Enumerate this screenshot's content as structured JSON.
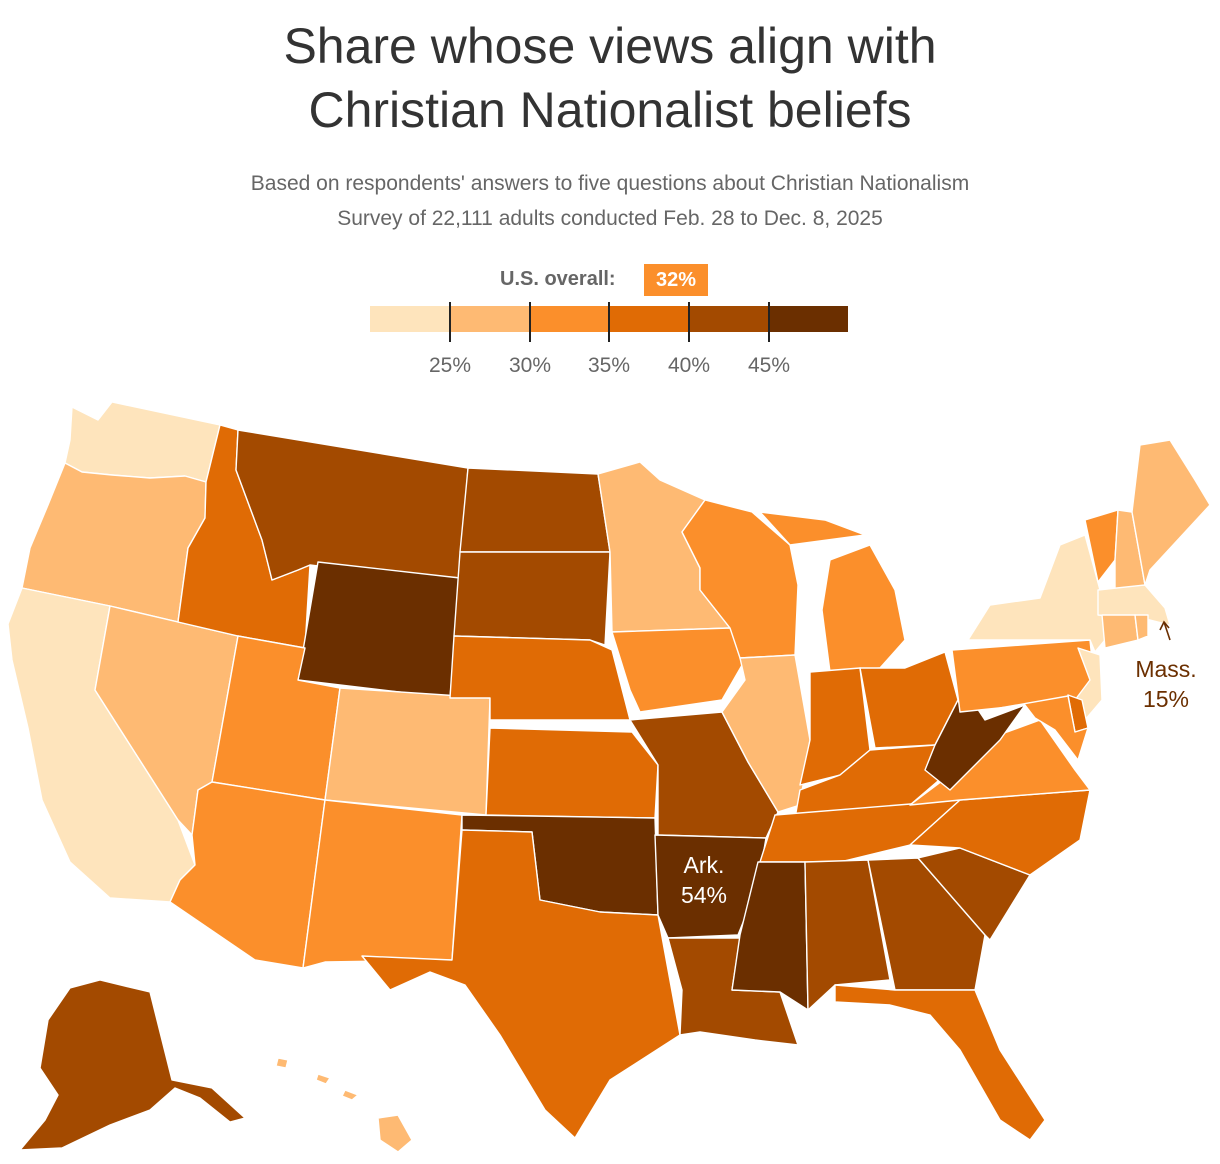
{
  "title_lines": [
    "Share whose views align with",
    "Christian Nationalist beliefs"
  ],
  "subtitle_lines": [
    "Based on respondents' answers to five questions about Christian Nationalism",
    "Survey of 22,111 adults conducted Feb. 28 to Dec. 8, 2025"
  ],
  "overall": {
    "label": "U.S. overall:",
    "value": "32%",
    "color": "#fb8f2b"
  },
  "legend": {
    "colors": [
      "#fee4bc",
      "#feba73",
      "#fb8f2b",
      "#e06b05",
      "#a34a00",
      "#6b2f00"
    ],
    "ticks": [
      "25%",
      "30%",
      "35%",
      "40%",
      "45%"
    ]
  },
  "callouts": [
    {
      "name": "Ark.",
      "value": "54%",
      "color": "#ffffff"
    },
    {
      "name": "Mass.",
      "value": "15%",
      "color": "#6b2f00"
    }
  ],
  "states": [
    {
      "abbr": "WA",
      "bin": 0
    },
    {
      "abbr": "OR",
      "bin": 1
    },
    {
      "abbr": "CA",
      "bin": 0
    },
    {
      "abbr": "NV",
      "bin": 1
    },
    {
      "abbr": "ID",
      "bin": 3
    },
    {
      "abbr": "MT",
      "bin": 4
    },
    {
      "abbr": "WY",
      "bin": 5
    },
    {
      "abbr": "UT",
      "bin": 2
    },
    {
      "abbr": "AZ",
      "bin": 2
    },
    {
      "abbr": "CO",
      "bin": 1
    },
    {
      "abbr": "NM",
      "bin": 2
    },
    {
      "abbr": "ND",
      "bin": 4
    },
    {
      "abbr": "SD",
      "bin": 4
    },
    {
      "abbr": "NE",
      "bin": 3
    },
    {
      "abbr": "KS",
      "bin": 3
    },
    {
      "abbr": "OK",
      "bin": 5
    },
    {
      "abbr": "TX",
      "bin": 3
    },
    {
      "abbr": "MN",
      "bin": 1
    },
    {
      "abbr": "IA",
      "bin": 2
    },
    {
      "abbr": "MO",
      "bin": 4
    },
    {
      "abbr": "AR",
      "bin": 5
    },
    {
      "abbr": "LA",
      "bin": 4
    },
    {
      "abbr": "WI",
      "bin": 2
    },
    {
      "abbr": "IL",
      "bin": 1
    },
    {
      "abbr": "MI",
      "bin": 2
    },
    {
      "abbr": "IN",
      "bin": 3
    },
    {
      "abbr": "OH",
      "bin": 3
    },
    {
      "abbr": "KY",
      "bin": 3
    },
    {
      "abbr": "TN",
      "bin": 3
    },
    {
      "abbr": "MS",
      "bin": 5
    },
    {
      "abbr": "AL",
      "bin": 4
    },
    {
      "abbr": "GA",
      "bin": 4
    },
    {
      "abbr": "FL",
      "bin": 3
    },
    {
      "abbr": "SC",
      "bin": 4
    },
    {
      "abbr": "NC",
      "bin": 3
    },
    {
      "abbr": "VA",
      "bin": 2
    },
    {
      "abbr": "WV",
      "bin": 5
    },
    {
      "abbr": "PA",
      "bin": 2
    },
    {
      "abbr": "NY",
      "bin": 0
    },
    {
      "abbr": "VT",
      "bin": 2
    },
    {
      "abbr": "NH",
      "bin": 1
    },
    {
      "abbr": "ME",
      "bin": 1
    },
    {
      "abbr": "MA",
      "bin": 0
    },
    {
      "abbr": "CT",
      "bin": 1
    },
    {
      "abbr": "RI",
      "bin": 1
    },
    {
      "abbr": "NJ",
      "bin": 0
    },
    {
      "abbr": "DE",
      "bin": 3
    },
    {
      "abbr": "MD",
      "bin": 2
    },
    {
      "abbr": "AK",
      "bin": 4
    },
    {
      "abbr": "HI",
      "bin": 1
    }
  ]
}
